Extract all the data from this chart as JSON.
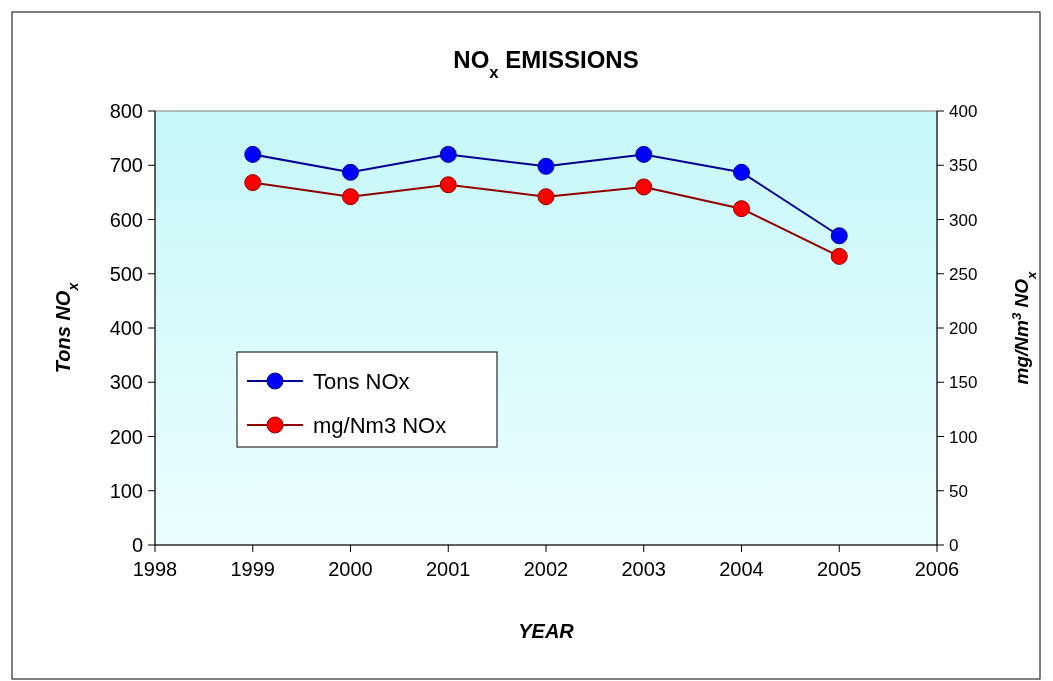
{
  "chart_data": {
    "type": "line",
    "title": "NO$_{x}$ EMISSIONS",
    "xlabel": "YEAR",
    "ylabel": "Tons NO$_{x}$",
    "y2label": "mg/Nm$^{3}$ NO$_{x}$",
    "x": [
      1999,
      2000,
      2001,
      2002,
      2003,
      2004,
      2005
    ],
    "series": [
      {
        "name": "Tons NOx",
        "color": "#0000ff",
        "values": [
          720,
          687,
          720,
          698,
          720,
          687,
          570
        ]
      },
      {
        "name": "mg/Nm3 NOx",
        "color": "#ff0000",
        "axis": "y2",
        "values": [
          334,
          321,
          332,
          321,
          330,
          310,
          266
        ]
      }
    ],
    "xlim": [
      1998,
      2006
    ],
    "xticks": [
      1998,
      1999,
      2000,
      2001,
      2002,
      2003,
      2004,
      2005,
      2006
    ],
    "ylim": [
      0,
      800
    ],
    "yticks": [
      0,
      100,
      200,
      300,
      400,
      500,
      600,
      700,
      800
    ],
    "y2lim": [
      0,
      400
    ],
    "y2ticks": [
      0,
      50,
      100,
      150,
      200,
      250,
      300,
      350,
      400
    ],
    "marker": "circle",
    "line_style": "solid",
    "legend": "left",
    "grid": false
  }
}
